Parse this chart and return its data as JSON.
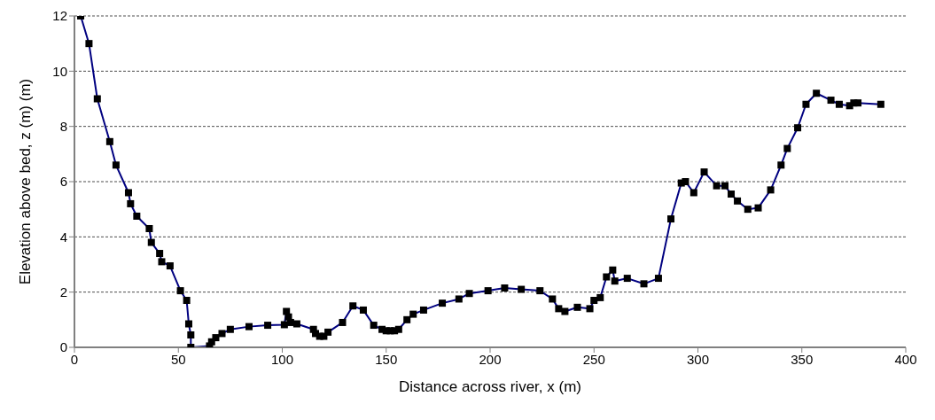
{
  "chart_data": {
    "type": "line",
    "xlabel": "Distance across river, x (m)",
    "ylabel": "Elevation above bed, z (m)    (m)",
    "xlim": [
      0,
      400
    ],
    "xticks": [
      0,
      50,
      100,
      150,
      200,
      250,
      300,
      350,
      400
    ],
    "ylim": [
      0,
      12
    ],
    "yticks": [
      0,
      2,
      4,
      6,
      8,
      10,
      12
    ],
    "grid": "y",
    "marker": "square",
    "line_style": "solid",
    "series": [
      {
        "color": "#000080",
        "x": [
          3,
          7,
          11,
          17,
          20,
          26,
          27,
          30,
          36,
          37,
          41,
          42,
          46,
          51,
          54,
          55,
          56,
          56,
          65,
          66,
          68,
          71,
          75,
          84,
          93,
          101,
          102,
          103,
          104,
          107,
          115,
          116,
          118,
          120,
          122,
          129,
          134,
          139,
          144,
          148,
          150,
          152,
          154,
          156,
          160,
          163,
          168,
          177,
          185,
          190,
          199,
          207,
          215,
          224,
          230,
          233,
          236,
          242,
          248,
          250,
          253,
          256,
          259,
          260,
          266,
          274,
          281,
          287,
          292,
          294,
          298,
          303,
          309,
          313,
          316,
          319,
          324,
          329,
          335,
          340,
          343,
          348,
          352,
          357,
          364,
          368,
          373,
          375,
          377,
          388
        ],
        "values": [
          12,
          11,
          9,
          7.45,
          6.6,
          5.6,
          5.2,
          4.75,
          4.3,
          3.8,
          3.4,
          3.1,
          2.95,
          2.05,
          1.7,
          0.85,
          0.45,
          0,
          0.05,
          0.2,
          0.35,
          0.5,
          0.65,
          0.75,
          0.8,
          0.82,
          1.3,
          1.1,
          0.9,
          0.85,
          0.65,
          0.5,
          0.4,
          0.4,
          0.55,
          0.9,
          1.5,
          1.35,
          0.8,
          0.65,
          0.6,
          0.6,
          0.6,
          0.65,
          1,
          1.2,
          1.35,
          1.6,
          1.75,
          1.95,
          2.05,
          2.15,
          2.1,
          2.05,
          1.75,
          1.4,
          1.3,
          1.45,
          1.4,
          1.7,
          1.8,
          2.55,
          2.8,
          2.4,
          2.5,
          2.3,
          2.5,
          4.65,
          5.95,
          6,
          5.6,
          6.35,
          5.85,
          5.85,
          5.55,
          5.3,
          5,
          5.05,
          5.7,
          6.6,
          7.2,
          7.95,
          8.8,
          9.2,
          8.95,
          8.8,
          8.75,
          8.85,
          8.85,
          8.8
        ]
      }
    ]
  }
}
